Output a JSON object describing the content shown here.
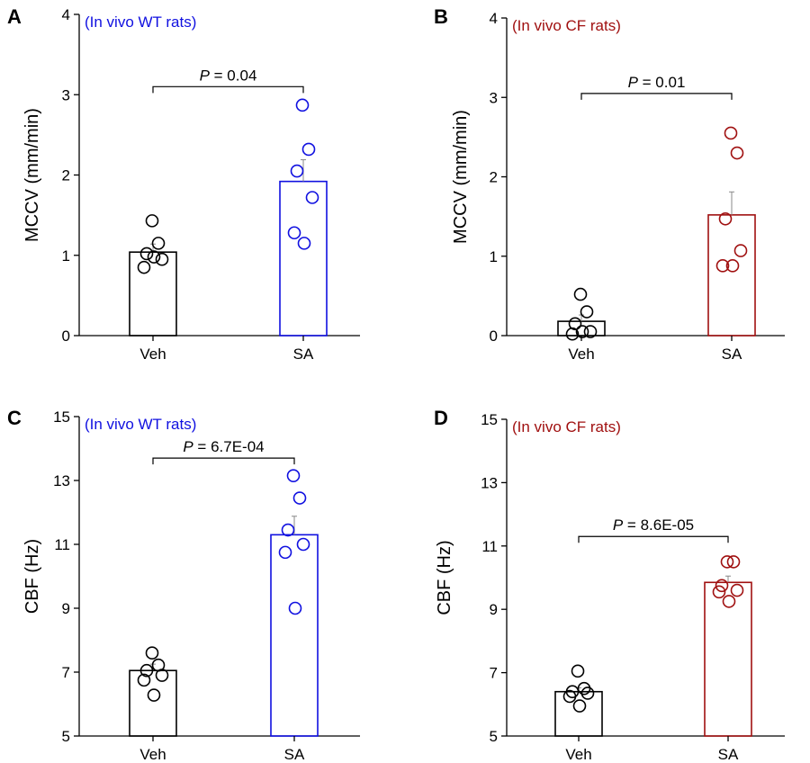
{
  "colors": {
    "veh": "#000000",
    "wt": "#1010e0",
    "cf": "#a01010",
    "axis": "#000000",
    "err": "#888888"
  },
  "chart_data": [
    {
      "type": "bar",
      "panel_label": "A",
      "subtitle": "(In vivo WT rats)",
      "subtitle_color": "#1010e0",
      "ylabel": "MCCV (mm/min)",
      "ylim": [
        0,
        4
      ],
      "yticks": [
        "0",
        "1",
        "2",
        "3",
        "4"
      ],
      "categories": [
        "Veh",
        "SA"
      ],
      "values": [
        1.04,
        1.92
      ],
      "errors": [
        0.1,
        0.27
      ],
      "points": [
        [
          1.43,
          1.15,
          1.02,
          0.95,
          0.85,
          0.98
        ],
        [
          2.87,
          2.32,
          2.05,
          1.72,
          1.28,
          1.15
        ]
      ],
      "bar_colors": [
        "#000000",
        "#1010e0"
      ],
      "pvalue_prefix": "P",
      "pvalue_text": " = 0.04",
      "bracket_y": 3.1
    },
    {
      "type": "bar",
      "panel_label": "B",
      "subtitle": "(In vivo CF rats)",
      "subtitle_color": "#a01010",
      "ylabel": "MCCV (mm/min)",
      "ylim": [
        0,
        4
      ],
      "yticks": [
        "0",
        "1",
        "2",
        "3",
        "4"
      ],
      "categories": [
        "Veh",
        "SA"
      ],
      "values": [
        0.18,
        1.52
      ],
      "errors": [
        0.08,
        0.29
      ],
      "points": [
        [
          0.52,
          0.3,
          0.15,
          0.05,
          0.02,
          0.05
        ],
        [
          2.55,
          2.3,
          1.47,
          1.07,
          0.88,
          0.88
        ]
      ],
      "bar_colors": [
        "#000000",
        "#a01010"
      ],
      "pvalue_prefix": "P",
      "pvalue_text": " = 0.01",
      "bracket_y": 3.05
    },
    {
      "type": "bar",
      "panel_label": "C",
      "subtitle": "(In vivo WT rats)",
      "subtitle_color": "#1010e0",
      "ylabel": "CBF (Hz)",
      "ylim": [
        5,
        15
      ],
      "yticks": [
        "5",
        "7",
        "9",
        "11",
        "13",
        "15"
      ],
      "categories": [
        "Veh",
        "SA"
      ],
      "values": [
        7.05,
        11.3
      ],
      "errors": [
        0.2,
        0.58
      ],
      "points": [
        [
          7.6,
          7.22,
          7.05,
          6.9,
          6.75,
          6.28
        ],
        [
          13.15,
          12.45,
          11.45,
          11.0,
          10.75,
          9.0
        ]
      ],
      "bar_colors": [
        "#000000",
        "#1010e0"
      ],
      "pvalue_prefix": "P",
      "pvalue_text": " = 6.7E-04",
      "bracket_y": 13.7
    },
    {
      "type": "bar",
      "panel_label": "D",
      "subtitle": "(In vivo CF rats)",
      "subtitle_color": "#a01010",
      "ylabel": "CBF (Hz)",
      "ylim": [
        5,
        15
      ],
      "yticks": [
        "5",
        "7",
        "9",
        "11",
        "13",
        "15"
      ],
      "categories": [
        "Veh",
        "SA"
      ],
      "values": [
        6.4,
        9.85
      ],
      "errors": [
        0.12,
        0.2
      ],
      "points": [
        [
          7.05,
          6.5,
          6.4,
          6.35,
          6.25,
          5.95
        ],
        [
          10.5,
          10.5,
          9.75,
          9.6,
          9.55,
          9.25
        ]
      ],
      "bar_colors": [
        "#000000",
        "#a01010"
      ],
      "pvalue_prefix": "P",
      "pvalue_text": " = 8.6E-05",
      "bracket_y": 11.3
    }
  ]
}
